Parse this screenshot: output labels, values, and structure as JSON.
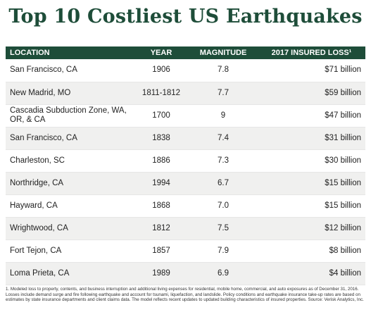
{
  "chart_data": {
    "type": "table",
    "title": "Top 10 Costliest US Earthquakes",
    "columns": [
      "LOCATION",
      "YEAR",
      "MAGNITUDE",
      "2017 INSURED LOSS¹"
    ],
    "rows": [
      {
        "location": "San Francisco, CA",
        "year": "1906",
        "magnitude": "7.8",
        "loss": "$71 billion"
      },
      {
        "location": "New Madrid, MO",
        "year": "1811-1812",
        "magnitude": "7.7",
        "loss": "$59 billion"
      },
      {
        "location": "Cascadia Subduction Zone, WA, OR, & CA",
        "year": "1700",
        "magnitude": "9",
        "loss": "$47 billion"
      },
      {
        "location": "San Francisco, CA",
        "year": "1838",
        "magnitude": "7.4",
        "loss": "$31 billion"
      },
      {
        "location": "Charleston, SC",
        "year": "1886",
        "magnitude": "7.3",
        "loss": "$30 billion"
      },
      {
        "location": "Northridge, CA",
        "year": "1994",
        "magnitude": "6.7",
        "loss": "$15 billion"
      },
      {
        "location": "Hayward, CA",
        "year": "1868",
        "magnitude": "7.0",
        "loss": "$15 billion"
      },
      {
        "location": "Wrightwood, CA",
        "year": "1812",
        "magnitude": "7.5",
        "loss": "$12 billion"
      },
      {
        "location": "Fort Tejon, CA",
        "year": "1857",
        "magnitude": "7.9",
        "loss": "$8 billion"
      },
      {
        "location": "Loma Prieta, CA",
        "year": "1989",
        "magnitude": "6.9",
        "loss": "$4 billion"
      }
    ],
    "footnote": "1. Modeled loss to property, contents, and business interruption and additional living expenses for residential, mobile home, commercial, and auto exposures as of December 31, 2016. Losses include demand surge and fire following earthquake and account for tsunami, liquefaction, and landslide. Policy conditions and earthquake insurance take-up rates are based on estimates by state insurance departments and client claims data. The model reflects recent updates to updated building characteristics of insured properties. Source: Verisk Analytics, Inc."
  },
  "colors": {
    "header_bg": "#1e4d39",
    "title": "#1e4d39",
    "stripe": "#f0f0ef"
  }
}
